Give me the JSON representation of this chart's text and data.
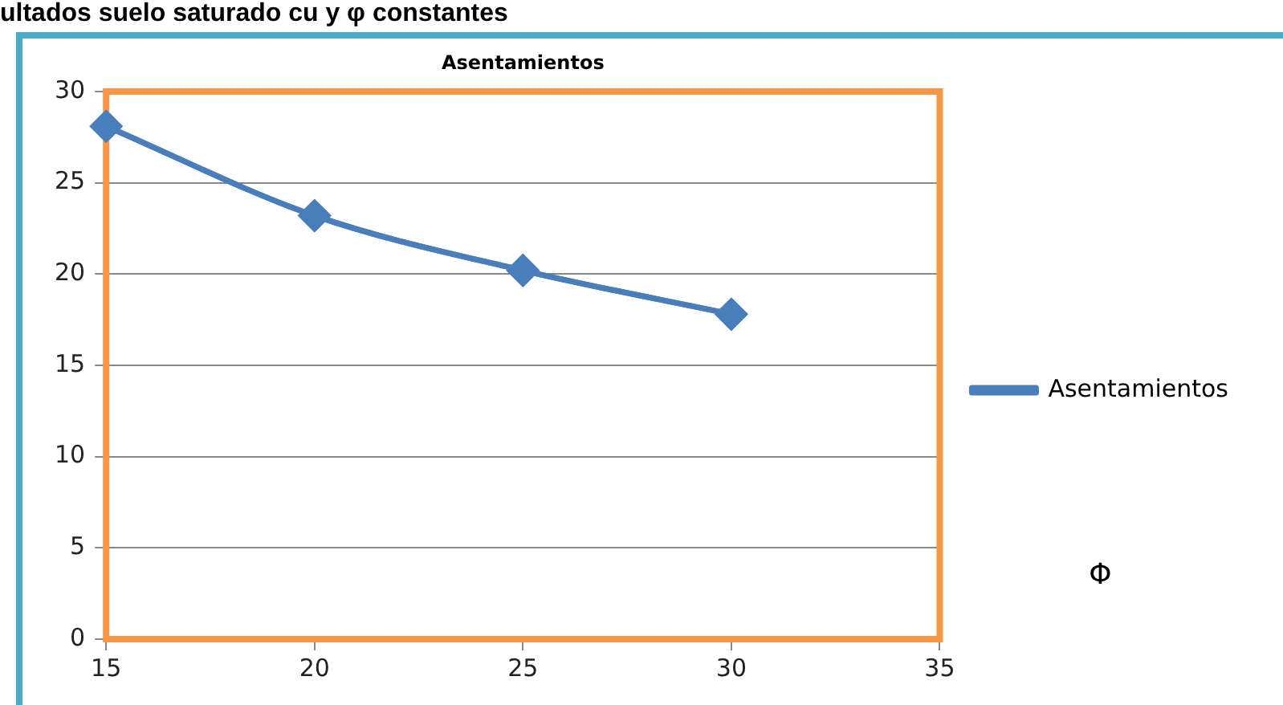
{
  "chart_data": {
    "type": "line",
    "title": "Asentamientos",
    "annotations": [
      "ultados suelo saturado cu y φ constantes",
      "Φ"
    ],
    "x": [
      15,
      20,
      25,
      30
    ],
    "series": [
      {
        "name": "Asentamientos",
        "color": "#4a7ebb",
        "values": [
          28.1,
          23.2,
          20.2,
          17.8
        ]
      }
    ],
    "xlim": [
      15,
      35
    ],
    "xticks": [
      15,
      20,
      25,
      30,
      35
    ],
    "ylim": [
      0,
      30
    ],
    "yticks": [
      0,
      5,
      10,
      15,
      20,
      25,
      30
    ],
    "grid": "y",
    "legend": "right",
    "marker": "diamond",
    "line_style": "solid"
  }
}
